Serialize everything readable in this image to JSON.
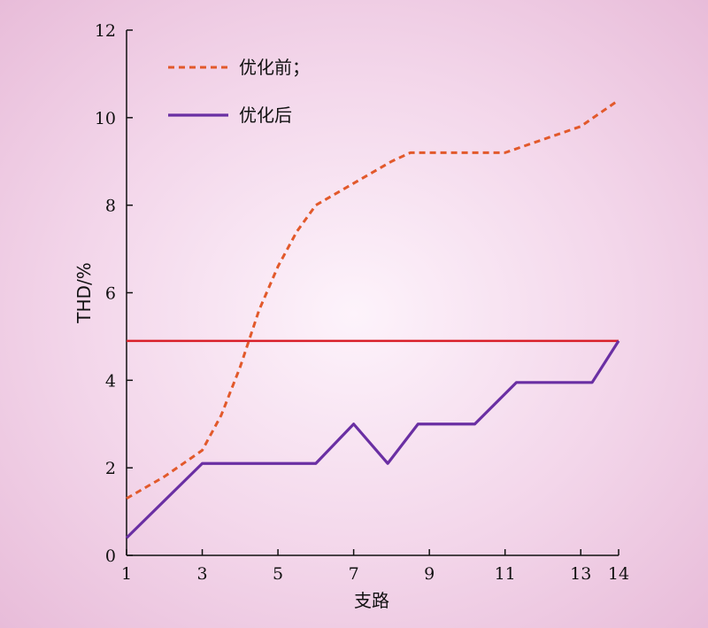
{
  "chart_data": {
    "type": "line",
    "title": "",
    "xlabel": "支路",
    "ylabel": "THD/%",
    "xlim": [
      1,
      14
    ],
    "ylim": [
      0,
      12
    ],
    "xticks": [
      1,
      3,
      5,
      7,
      9,
      11,
      13,
      14
    ],
    "yticks": [
      0,
      2,
      4,
      6,
      8,
      10,
      12
    ],
    "grid": false,
    "legend_position": "top-left",
    "series": [
      {
        "name": "优化前；",
        "style": "dashed",
        "color": "#e2592b",
        "x": [
          1,
          2,
          3,
          3.5,
          4,
          4.5,
          5,
          5.5,
          6,
          7,
          8,
          8.5,
          9,
          10,
          11,
          12,
          13,
          14
        ],
        "y": [
          1.3,
          1.8,
          2.4,
          3.2,
          4.3,
          5.6,
          6.6,
          7.4,
          8.0,
          8.5,
          9.0,
          9.2,
          9.2,
          9.2,
          9.2,
          9.5,
          9.8,
          10.4
        ]
      },
      {
        "name": "优化后",
        "style": "solid",
        "color": "#6a2fa3",
        "x": [
          1,
          3,
          6,
          7,
          7.9,
          8.7,
          10.2,
          11.3,
          13.3,
          14
        ],
        "y": [
          0.4,
          2.1,
          2.1,
          3.0,
          2.1,
          3.0,
          3.0,
          3.95,
          3.95,
          4.9
        ]
      }
    ],
    "reference_line": {
      "y": 4.9,
      "color": "#d9202a"
    }
  }
}
